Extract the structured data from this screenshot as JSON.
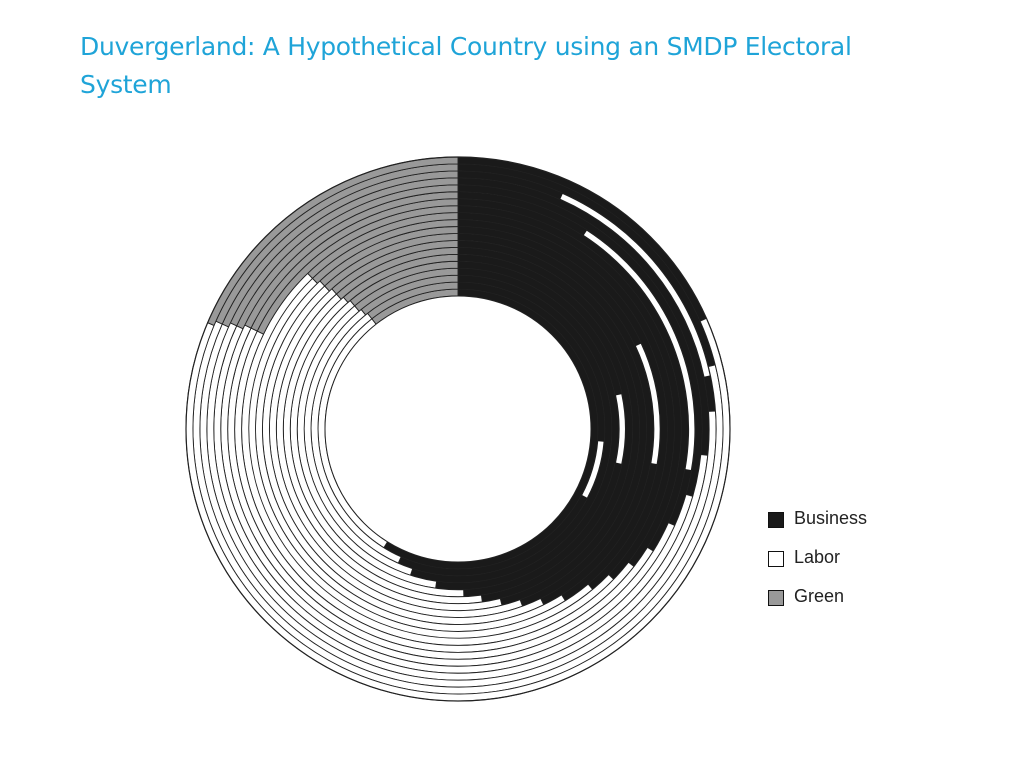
{
  "title": "Duvergerland: A Hypothetical Country using an SMDP Electoral System",
  "legend": [
    {
      "label": "Business",
      "color": "#1a1a1a"
    },
    {
      "label": "Labor",
      "color": "#ffffff"
    },
    {
      "label": "Green",
      "color": "#999999"
    }
  ],
  "colors": {
    "title": "#1fa4d8",
    "ring_stroke": "#222222"
  },
  "diagram": {
    "ring_count": 20,
    "segments": [
      {
        "party": "Business",
        "fill": "#1a1a1a"
      },
      {
        "party": "Labor",
        "fill": "#ffffff"
      },
      {
        "party": "Green",
        "fill": "#999999"
      }
    ]
  }
}
